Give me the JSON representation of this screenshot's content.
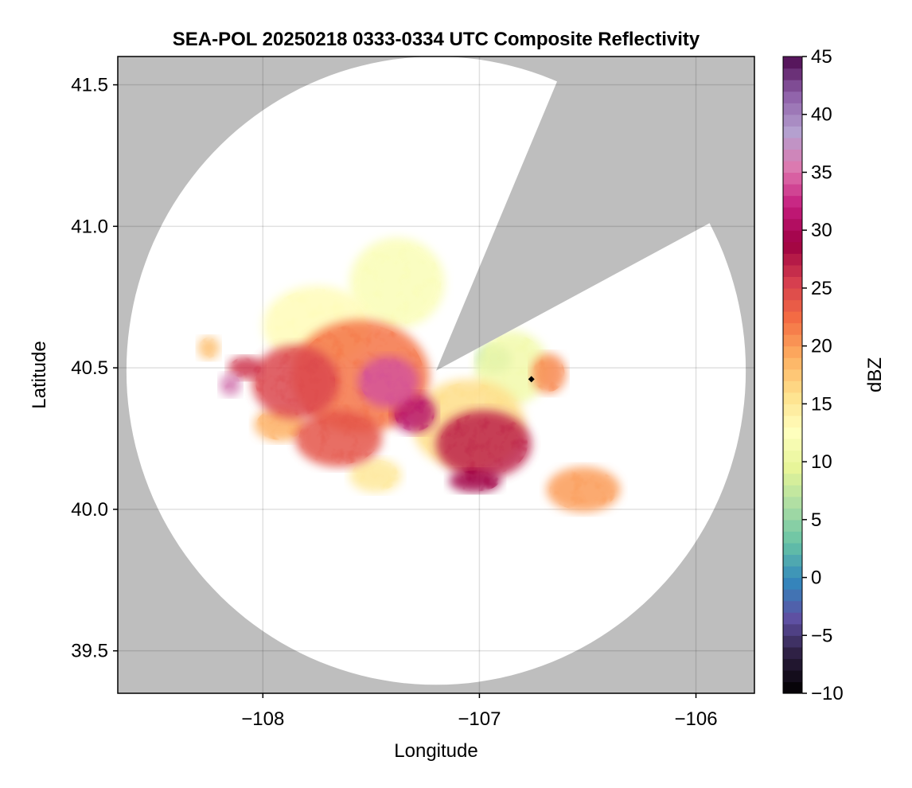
{
  "chart_data": {
    "type": "heatmap",
    "title": "SEA-POL 20250218 0333-0334 UTC Composite Reflectivity",
    "xlabel": "Longitude",
    "ylabel": "Latitude",
    "xlim": [
      -108.67,
      -105.73
    ],
    "ylim": [
      39.35,
      41.6
    ],
    "xticks": [
      -108,
      -107,
      -106
    ],
    "xtick_labels": [
      "−108",
      "−107",
      "−106"
    ],
    "yticks": [
      39.5,
      40.0,
      40.5,
      41.0,
      41.5
    ],
    "ytick_labels": [
      "39.5",
      "40.0",
      "40.5",
      "41.0",
      "41.5"
    ],
    "grid": true,
    "background_color": "#bebebe",
    "radar": {
      "center_lon": -107.2,
      "center_lat": 40.49,
      "coverage_radius_lon": 1.43,
      "coverage_radius_lat": 1.11,
      "blocked_sector_bearings_deg": [
        23,
        62
      ],
      "site_marker": {
        "lon": -106.76,
        "lat": 40.46
      }
    },
    "colorbar": {
      "label": "dBZ",
      "min": -10,
      "max": 45,
      "step": 1,
      "ticks": [
        -10,
        -5,
        0,
        5,
        10,
        15,
        20,
        25,
        30,
        35,
        40,
        45
      ],
      "tick_labels": [
        "−10",
        "−5",
        "0",
        "5",
        "10",
        "15",
        "20",
        "25",
        "30",
        "35",
        "40",
        "45"
      ],
      "colormap": "Spectral (reversed)",
      "colors": [
        "#000000",
        "#2b1d3d",
        "#5e4fa2",
        "#3288bd",
        "#66c2a5",
        "#abdda4",
        "#e6f598",
        "#ffffbf",
        "#fee08b",
        "#fdae61",
        "#f46d43",
        "#d53e4f",
        "#9e0142",
        "#c51b7d",
        "#de77ae",
        "#b4a0cf",
        "#8e5fa8",
        "#4d0a4f"
      ]
    },
    "echo_cells": [
      {
        "lon": -107.55,
        "lat": 40.47,
        "r_lon": 0.32,
        "r_lat": 0.2,
        "dbz": 22
      },
      {
        "lon": -107.42,
        "lat": 40.45,
        "r_lon": 0.14,
        "r_lat": 0.09,
        "dbz": 34
      },
      {
        "lon": -107.3,
        "lat": 40.34,
        "r_lon": 0.1,
        "r_lat": 0.07,
        "dbz": 31
      },
      {
        "lon": -107.85,
        "lat": 40.45,
        "r_lon": 0.2,
        "r_lat": 0.13,
        "dbz": 25
      },
      {
        "lon": -107.75,
        "lat": 40.65,
        "r_lon": 0.25,
        "r_lat": 0.14,
        "dbz": 13
      },
      {
        "lon": -107.38,
        "lat": 40.8,
        "r_lon": 0.22,
        "r_lat": 0.16,
        "dbz": 12
      },
      {
        "lon": -108.15,
        "lat": 40.44,
        "r_lon": 0.05,
        "r_lat": 0.04,
        "dbz": 36
      },
      {
        "lon": -108.08,
        "lat": 40.5,
        "r_lon": 0.08,
        "r_lat": 0.04,
        "dbz": 26
      },
      {
        "lon": -107.65,
        "lat": 40.25,
        "r_lon": 0.2,
        "r_lat": 0.1,
        "dbz": 24
      },
      {
        "lon": -106.98,
        "lat": 40.23,
        "r_lon": 0.22,
        "r_lat": 0.12,
        "dbz": 27
      },
      {
        "lon": -107.05,
        "lat": 40.3,
        "r_lon": 0.26,
        "r_lat": 0.16,
        "dbz": 16
      },
      {
        "lon": -107.02,
        "lat": 40.1,
        "r_lon": 0.12,
        "r_lat": 0.04,
        "dbz": 29
      },
      {
        "lon": -106.85,
        "lat": 40.5,
        "r_lon": 0.17,
        "r_lat": 0.13,
        "dbz": 11
      },
      {
        "lon": -106.93,
        "lat": 40.53,
        "r_lon": 0.08,
        "r_lat": 0.05,
        "dbz": 5
      },
      {
        "lon": -106.68,
        "lat": 40.48,
        "r_lon": 0.08,
        "r_lat": 0.07,
        "dbz": 21
      },
      {
        "lon": -106.52,
        "lat": 40.07,
        "r_lon": 0.17,
        "r_lat": 0.08,
        "dbz": 20
      },
      {
        "lon": -107.48,
        "lat": 40.12,
        "r_lon": 0.12,
        "r_lat": 0.06,
        "dbz": 15
      },
      {
        "lon": -107.92,
        "lat": 40.3,
        "r_lon": 0.12,
        "r_lat": 0.06,
        "dbz": 19
      },
      {
        "lon": -108.25,
        "lat": 40.57,
        "r_lon": 0.05,
        "r_lat": 0.04,
        "dbz": 18
      }
    ]
  }
}
